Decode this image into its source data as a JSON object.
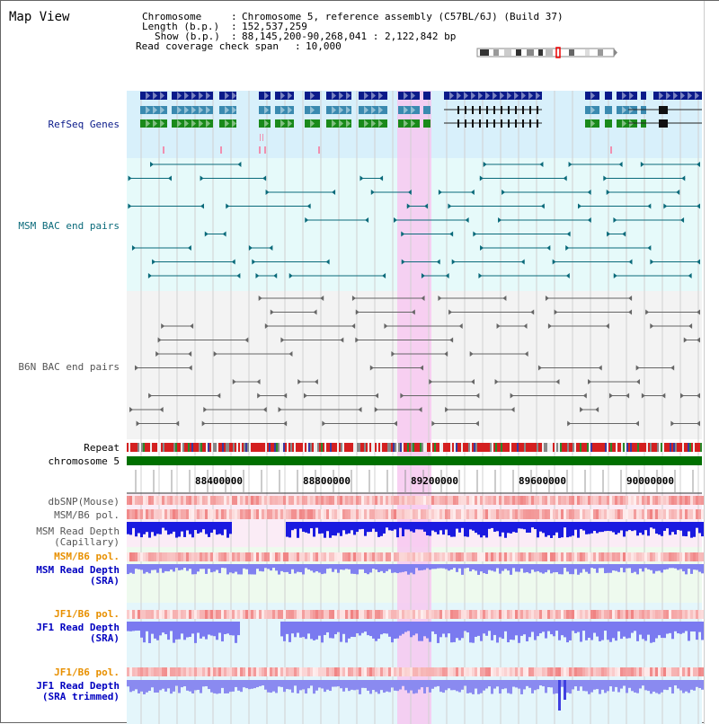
{
  "map_title": "Map View",
  "info": {
    "chromosome_label": "Chromosome",
    "chromosome_value": "Chromosome 5, reference assembly (C57BL/6J) (Build 37)",
    "length_label": "Length (b.p.)",
    "length_value": "152,537,259",
    "show_label": "Show (b.p.)",
    "show_value": "88,145,200-90,268,041 : 2,122,842 bp",
    "coverage_label": "Read coverage check span",
    "coverage_value": "10,000"
  },
  "tracks": {
    "refseq": "RefSeq Genes",
    "msm_bac": "MSM BAC end pairs",
    "b6n_bac": "B6N BAC end pairs",
    "repeat": "Repeat",
    "chromosome": "chromosome 5",
    "dbsnp": "dbSNP(Mouse)",
    "msm_b6_pol_1": "MSM/B6 pol.",
    "msm_depth_cap_1": "MSM Read Depth",
    "msm_depth_cap_2": "(Capillary)",
    "msm_b6_pol_2": "MSM/B6 pol.",
    "msm_depth_sra_1": "MSM Read Depth",
    "msm_depth_sra_2": "(SRA)",
    "jf1_b6_pol_1": "JF1/B6 pol.",
    "jf1_depth_sra_1": "JF1 Read Depth",
    "jf1_depth_sra_2": "(SRA)",
    "jf1_b6_pol_2": "JF1/B6 pol.",
    "jf1_depth_trim_1": "JF1 Read Depth",
    "jf1_depth_trim_2": "(SRA trimmed)"
  },
  "axis": {
    "ticks": [
      "88400000",
      "88800000",
      "89200000",
      "89600000",
      "90000000"
    ]
  },
  "colors": {
    "navy": "#0a1a8a",
    "teal": "#0a6a7a",
    "orange": "#e89000",
    "blue": "#0000c0",
    "highlight": "#f7c8f0",
    "chrom_green": "#007000"
  }
}
